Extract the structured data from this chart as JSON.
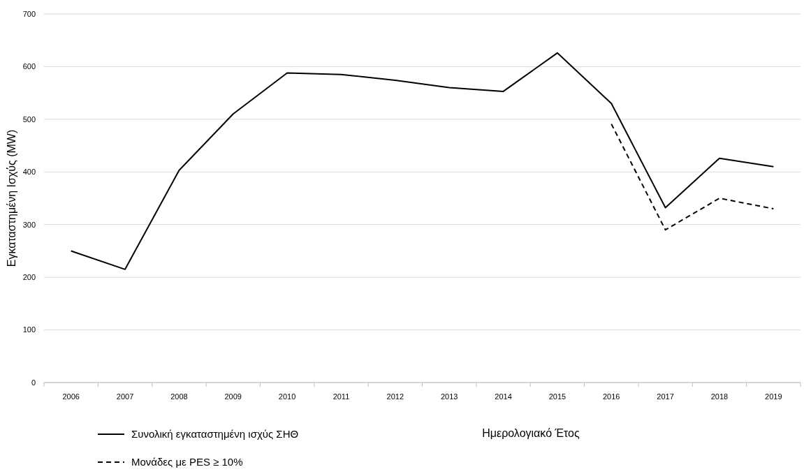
{
  "chart_data": {
    "type": "line",
    "xlabel": "Ημερολογιακό Έτος",
    "ylabel": "Εγκαταστημένη Ισχύς (MW)",
    "categories": [
      "2006",
      "2007",
      "2008",
      "2009",
      "2010",
      "2011",
      "2012",
      "2013",
      "2014",
      "2015",
      "2016",
      "2017",
      "2018",
      "2019"
    ],
    "series": [
      {
        "name": "Συνολική εγκαταστημένη ισχύς ΣΗΘ",
        "color": "#000000",
        "line_style": "solid",
        "values": [
          250,
          215,
          403,
          510,
          588,
          585,
          574,
          560,
          553,
          626,
          530,
          332,
          426,
          410
        ]
      },
      {
        "name": "Μονάδες με  PES  ≥ 10%",
        "color": "#000000",
        "line_style": "dashed",
        "values": [
          null,
          null,
          null,
          null,
          null,
          null,
          null,
          null,
          null,
          null,
          491,
          290,
          350,
          330
        ]
      }
    ],
    "ylim": [
      0,
      700
    ],
    "yticks": [
      0,
      100,
      200,
      300,
      400,
      500,
      600,
      700
    ],
    "grid": "y",
    "legend": "bottom",
    "marker": "none"
  }
}
